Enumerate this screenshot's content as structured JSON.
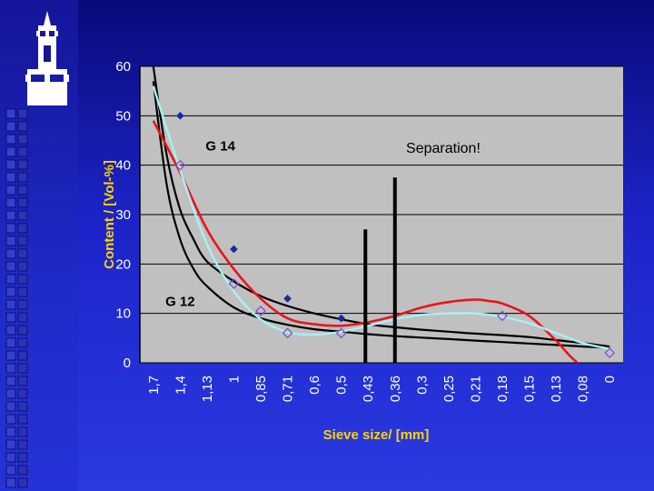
{
  "colors": {
    "background": "#1c24c8",
    "plot_area": "#c0c0c0",
    "axis_title": "#ffd400",
    "tick_label": "#ffffff",
    "g14_curve": "#000000",
    "g12_curve": "#000000",
    "red_curve": "#e8141e",
    "cyan_curve": "#a8f0f4"
  },
  "icons": {
    "logo": "tower-logo-icon"
  },
  "chart_data": {
    "type": "scatter",
    "xlabel": "Sieve size/ [mm]",
    "ylabel": "Content / [Vol-%]",
    "ylim": [
      0,
      60
    ],
    "yticks": [
      "0",
      "10",
      "20",
      "30",
      "40",
      "50",
      "60"
    ],
    "categories": [
      "1,7",
      "1,4",
      "1,13",
      "1",
      "0,85",
      "0,71",
      "0,6",
      "0,5",
      "0,43",
      "0,36",
      "0,3",
      "0,25",
      "0,21",
      "0,18",
      "0,15",
      "0,13",
      "0,08",
      "0"
    ],
    "grid": true,
    "annotations": [
      {
        "text": "G 14",
        "x": 2.5,
        "y": 43
      },
      {
        "text": "G 12",
        "x": 1.0,
        "y": 11.5
      },
      {
        "text": "Separation!",
        "x": 10.8,
        "y": 42.5
      }
    ],
    "separation_bars": [
      {
        "x": 7.9,
        "y": 27
      },
      {
        "x": 9.0,
        "y": 37.5
      }
    ],
    "series": [
      {
        "x": [
          1,
          3,
          5,
          7
        ],
        "values": [
          50,
          23,
          13,
          9
        ]
      },
      {
        "x": [
          1,
          3,
          4,
          5,
          7,
          13,
          17
        ],
        "values": [
          40,
          16,
          10.5,
          6,
          6,
          9.5,
          2
        ]
      },
      {
        "x": [
          0,
          0.5,
          1,
          1.5,
          2,
          3,
          4,
          5,
          6,
          7,
          8,
          9,
          10,
          11,
          12,
          13,
          14,
          15,
          16,
          17
        ],
        "values": [
          60,
          42,
          31,
          25,
          20.5,
          16.5,
          13.5,
          11.5,
          10,
          8.8,
          7.8,
          7.2,
          6.7,
          6.3,
          5.9,
          5.6,
          5.2,
          4.6,
          4.0,
          3.3
        ]
      },
      {
        "x": [
          0,
          0.5,
          1,
          1.5,
          2,
          3,
          4,
          5,
          6,
          7,
          8,
          9,
          10,
          11,
          12,
          13,
          14,
          15,
          16,
          17
        ],
        "values": [
          57,
          36,
          25,
          19,
          15.5,
          11.2,
          9.0,
          7.7,
          6.8,
          6.3,
          5.8,
          5.4,
          5.1,
          4.8,
          4.5,
          4.2,
          3.9,
          3.6,
          3.3,
          3.0
        ]
      },
      {
        "x": [
          0,
          1,
          2,
          3,
          4,
          5,
          6,
          7,
          8,
          9,
          10,
          11,
          12,
          12.5,
          13,
          14,
          15,
          15.5,
          16
        ],
        "values": [
          49,
          38.5,
          27,
          19,
          13,
          9,
          7.8,
          7.5,
          8.2,
          9.5,
          11.2,
          12.3,
          12.8,
          12.5,
          12,
          9.5,
          4.5,
          1.5,
          -1
        ]
      },
      {
        "x": [
          0,
          1,
          2,
          3,
          4,
          5,
          6,
          7,
          8,
          9,
          10,
          11,
          12,
          13,
          14,
          15,
          16,
          17
        ],
        "values": [
          56,
          39,
          24,
          14.5,
          8.8,
          6.2,
          5.7,
          6.3,
          7.5,
          8.8,
          9.7,
          10,
          10,
          9.3,
          8,
          6,
          4,
          2.8
        ]
      }
    ]
  }
}
